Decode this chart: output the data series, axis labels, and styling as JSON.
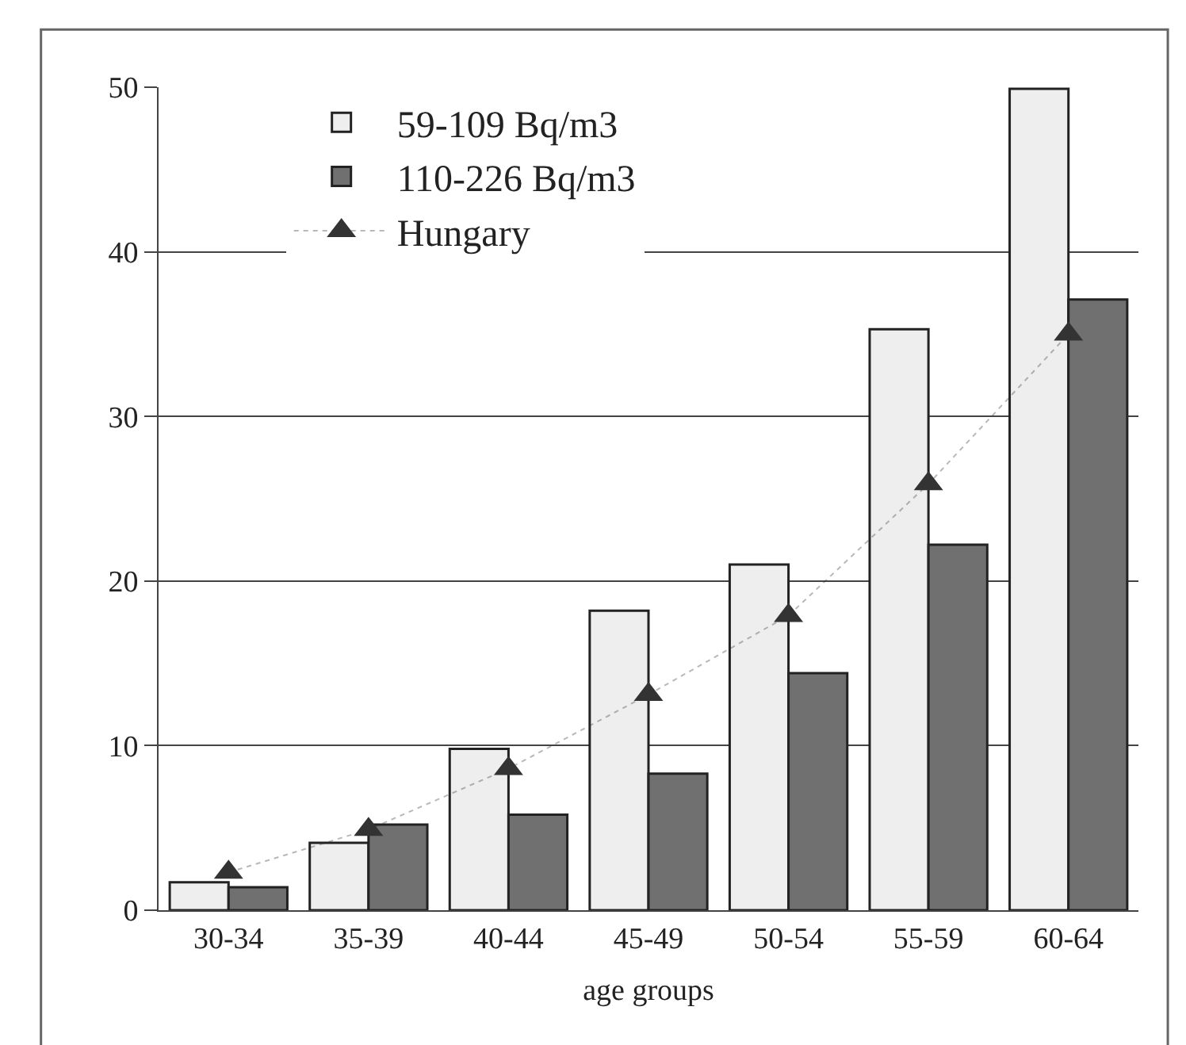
{
  "chart_data": {
    "type": "bar",
    "xlabel": "age groups",
    "categories": [
      "30-34",
      "35-39",
      "40-44",
      "45-49",
      "50-54",
      "55-59",
      "60-64"
    ],
    "series": [
      {
        "name": "59-109 Bq/m3",
        "color": "#eeeeee",
        "values": [
          1.7,
          4.1,
          9.8,
          18.2,
          21,
          35.3,
          49.9
        ]
      },
      {
        "name": "110-226 Bq/m3",
        "color": "#707070",
        "values": [
          1.4,
          5.2,
          5.8,
          8.3,
          14.4,
          22.2,
          37.1
        ]
      },
      {
        "name": "Hungary",
        "type": "line",
        "color": "#333333",
        "marker": "triangle",
        "line_style": "dotted",
        "values": [
          2.3,
          4.9,
          8.6,
          13.1,
          17.9,
          25.9,
          35
        ]
      }
    ],
    "ylim": [
      0,
      50
    ],
    "yticks": [
      0,
      10,
      20,
      30,
      40,
      50
    ],
    "grid": "y",
    "legend": "top left"
  }
}
